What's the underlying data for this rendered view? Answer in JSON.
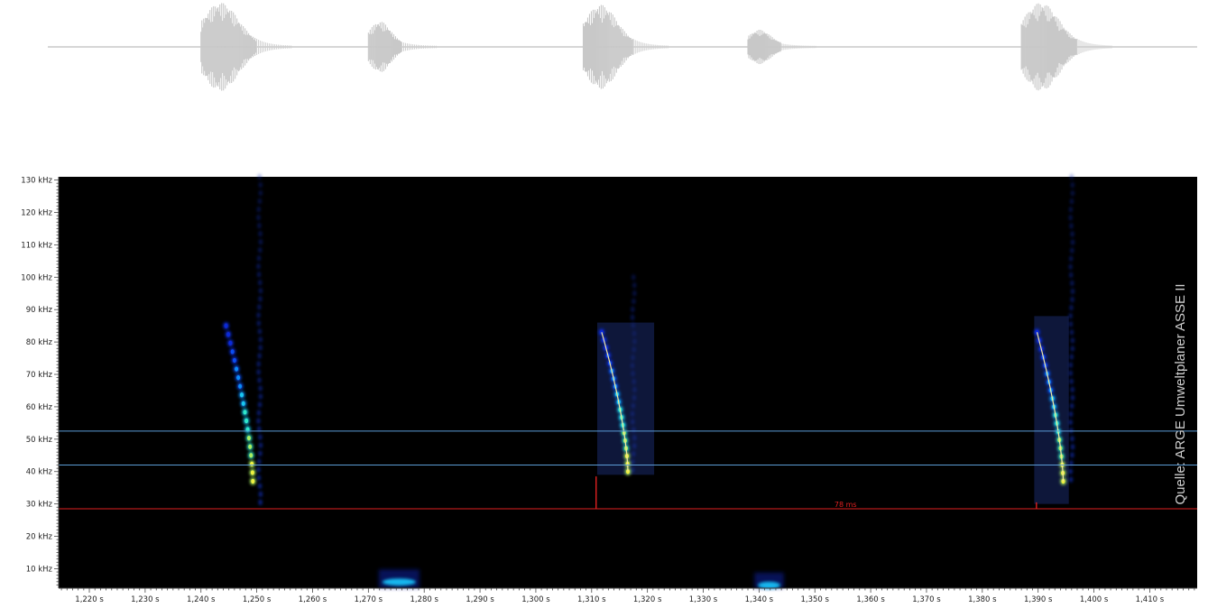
{
  "waveform": {
    "amp_labels": [
      "",
      "",
      ""
    ],
    "bursts": [
      {
        "t": 1.245,
        "width": 0.01,
        "amp": 1.0
      },
      {
        "t": 1.273,
        "width": 0.006,
        "amp": 0.55
      },
      {
        "t": 1.313,
        "width": 0.009,
        "amp": 0.95
      },
      {
        "t": 1.341,
        "width": 0.006,
        "amp": 0.35
      },
      {
        "t": 1.392,
        "width": 0.01,
        "amp": 1.0
      }
    ]
  },
  "chart_data": {
    "type": "heatmap",
    "title": "",
    "xlabel": "",
    "ylabel": "",
    "xlim": [
      1.2145,
      1.4185
    ],
    "ylim": [
      4,
      131
    ],
    "x_ticks": [
      1.22,
      1.23,
      1.24,
      1.25,
      1.26,
      1.27,
      1.28,
      1.29,
      1.3,
      1.31,
      1.32,
      1.33,
      1.34,
      1.35,
      1.36,
      1.37,
      1.38,
      1.39,
      1.4,
      1.41
    ],
    "x_tick_labels": [
      "1,220 s",
      "1,230 s",
      "1,240 s",
      "1,250 s",
      "1,260 s",
      "1,270 s",
      "1,280 s",
      "1,290 s",
      "1,300 s",
      "1,310 s",
      "1,320 s",
      "1,330 s",
      "1,340 s",
      "1,350 s",
      "1,360 s",
      "1,370 s",
      "1,380 s",
      "1,390 s",
      "1,400 s",
      "1,410 s"
    ],
    "y_ticks": [
      10,
      20,
      30,
      40,
      50,
      60,
      70,
      80,
      90,
      100,
      110,
      120,
      130
    ],
    "y_tick_labels": [
      "10 kHz",
      "20 kHz",
      "30 kHz",
      "40 kHz",
      "50 kHz",
      "60 kHz",
      "70 kHz",
      "80 kHz",
      "90 kHz",
      "100 kHz",
      "110 kHz",
      "120 kHz",
      "130 kHz"
    ],
    "calls": [
      {
        "t_start": 1.2445,
        "t_end": 1.2493,
        "f_start": 85,
        "f_end": 37,
        "highlight": false
      },
      {
        "t_start": 1.3118,
        "t_end": 1.3165,
        "f_start": 83,
        "f_end": 40,
        "highlight": true,
        "box_t": [
          1.311,
          1.3212
        ],
        "box_f": [
          39,
          86
        ]
      },
      {
        "t_start": 1.3898,
        "t_end": 1.3945,
        "f_start": 83,
        "f_end": 37,
        "highlight": true,
        "box_t": [
          1.3893,
          1.3955
        ],
        "box_f": [
          30,
          88
        ]
      }
    ],
    "echo_streaks": [
      {
        "t": 1.2505,
        "f_low": 28,
        "f_high": 131
      },
      {
        "t": 1.3175,
        "f_low": 38,
        "f_high": 100
      },
      {
        "t": 1.396,
        "f_low": 35,
        "f_high": 131
      }
    ],
    "noise_blobs": [
      {
        "t": 1.2755,
        "f": 7,
        "width": 0.006
      },
      {
        "t": 1.3418,
        "f": 6,
        "width": 0.004
      }
    ],
    "horizontal_lines": [
      {
        "f": 52.5,
        "color": "#5b9bd5"
      },
      {
        "f": 42,
        "color": "#5b9bd5"
      },
      {
        "f": 28.5,
        "color": "#e02020"
      }
    ],
    "measurement": {
      "t_start": 1.3108,
      "t_end": 1.3897,
      "f_base": 28.5,
      "f_top_start": 38.5,
      "f_top_end": 30.5,
      "label": "78 ms",
      "label_t": 1.3555,
      "color": "#e02020"
    },
    "colors": {
      "background": "#000000",
      "line_blue": "#5b9bd5",
      "line_red": "#e02020",
      "trace": "#f2e8a0"
    }
  },
  "credit": "Quelle: ARGE Umweltplaner ASSE II"
}
